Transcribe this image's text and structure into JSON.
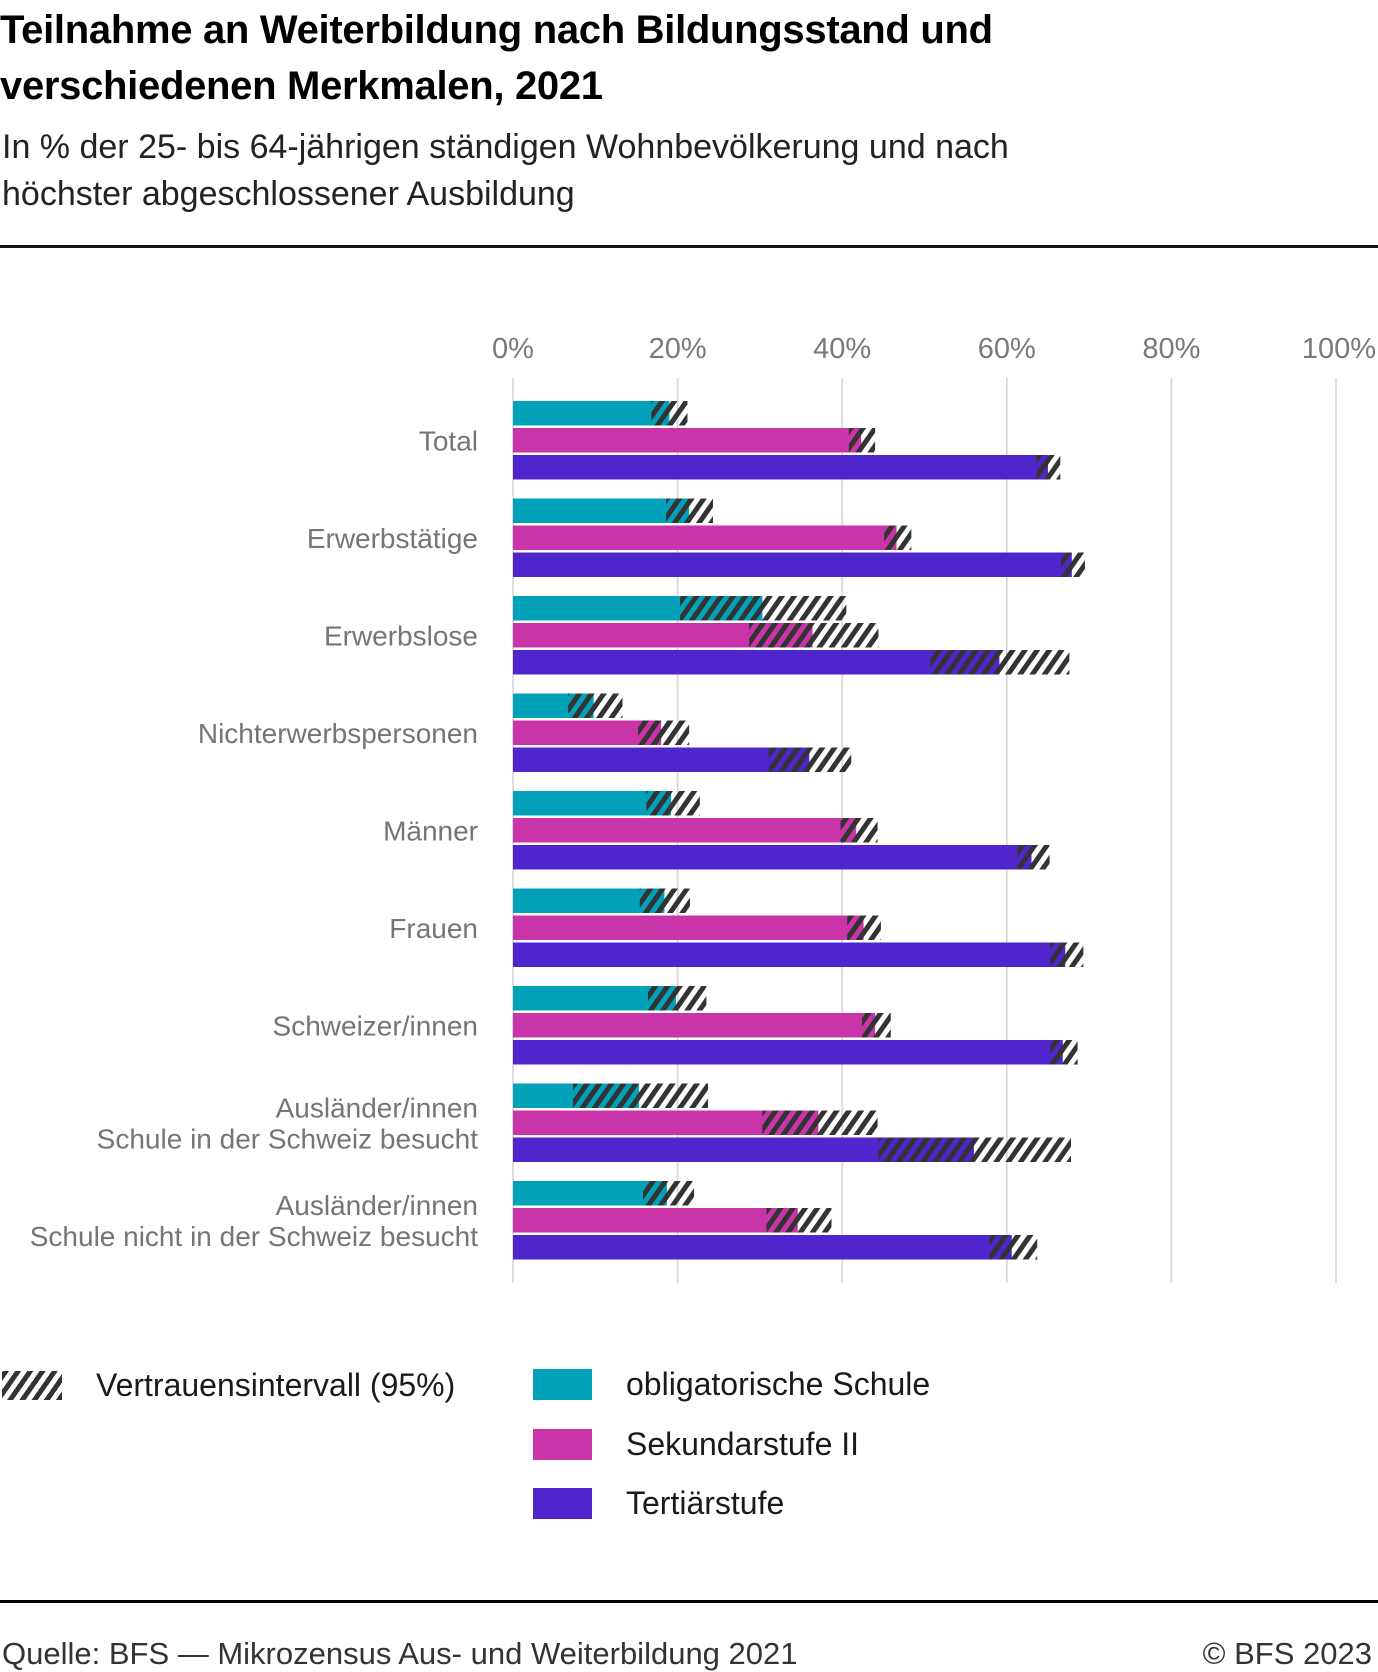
{
  "header": {
    "title": "Teilnahme an Weiterbildung nach Bildungsstand und verschiedenen Merkmalen, 2021",
    "subtitle": "In % der 25- bis 64-jährigen ständigen Wohnbevölkerung und nach höchster abgeschlossener Ausbildung"
  },
  "footer": {
    "source": "Quelle: BFS — Mikrozensus Aus- und Weiterbildung 2021",
    "copyright": "© BFS 2023"
  },
  "legend": {
    "ci_label": "Vertrauensintervall (95%)",
    "ci_icon": "hatch-pattern-icon",
    "series_labels": [
      "obligatorische Schule",
      "Sekundarstufe II",
      "Tertiärstufe"
    ]
  },
  "colors": {
    "obligatorische Schule": "#00a1b9",
    "Sekundarstufe II": "#c935a8",
    "Tertiärstufe": "#4f26cc",
    "hatch": "#333333",
    "grid": "#d6d6d6"
  },
  "chart_data": {
    "type": "bar",
    "orientation": "horizontal",
    "title": "Teilnahme an Weiterbildung nach Bildungsstand und verschiedenen Merkmalen, 2021",
    "xlabel": "",
    "ylabel": "",
    "xlim": [
      0,
      100
    ],
    "x_ticks": [
      0,
      20,
      40,
      60,
      80,
      100
    ],
    "x_tick_labels": [
      "0%",
      "20%",
      "40%",
      "60%",
      "80%",
      "100%"
    ],
    "grid": true,
    "legend_position": "bottom-left",
    "categories": [
      [
        "Total"
      ],
      [
        "Erwerbstätige"
      ],
      [
        "Erwerbslose"
      ],
      [
        "Nichterwerbspersonen"
      ],
      [
        "Männer"
      ],
      [
        "Frauen"
      ],
      [
        "Schweizer/innen"
      ],
      [
        "Ausländer/innen",
        "Schule in der Schweiz besucht"
      ],
      [
        "Ausländer/innen",
        "Schule nicht in der Schweiz besucht"
      ]
    ],
    "series": [
      {
        "name": "obligatorische Schule",
        "values": [
          19.0,
          21.4,
          30.3,
          9.8,
          19.2,
          18.4,
          19.8,
          15.3,
          18.7
        ],
        "ci_lower": [
          16.8,
          18.6,
          20.3,
          6.7,
          16.2,
          15.4,
          16.4,
          7.3,
          15.8
        ],
        "ci_upper": [
          21.2,
          24.3,
          40.5,
          13.3,
          22.7,
          21.5,
          23.5,
          23.7,
          22.0
        ]
      },
      {
        "name": "Sekundarstufe II",
        "values": [
          42.3,
          46.6,
          36.4,
          18.0,
          41.7,
          42.6,
          44.0,
          37.1,
          34.6
        ],
        "ci_lower": [
          40.8,
          45.1,
          28.7,
          15.2,
          39.8,
          40.6,
          42.4,
          30.3,
          30.8
        ],
        "ci_upper": [
          44.0,
          48.4,
          44.4,
          21.4,
          44.3,
          44.7,
          45.9,
          44.3,
          38.7
        ]
      },
      {
        "name": "Tertiärstufe",
        "values": [
          65.0,
          67.9,
          59.1,
          36.0,
          63.0,
          67.1,
          66.8,
          56.0,
          60.6
        ],
        "ci_lower": [
          63.6,
          66.6,
          50.7,
          31.1,
          61.3,
          65.3,
          65.3,
          44.4,
          57.9
        ],
        "ci_upper": [
          66.5,
          69.5,
          67.6,
          41.1,
          65.2,
          69.3,
          68.6,
          67.8,
          63.7
        ]
      }
    ],
    "error_type": "Vertrauensintervall (95%)"
  }
}
